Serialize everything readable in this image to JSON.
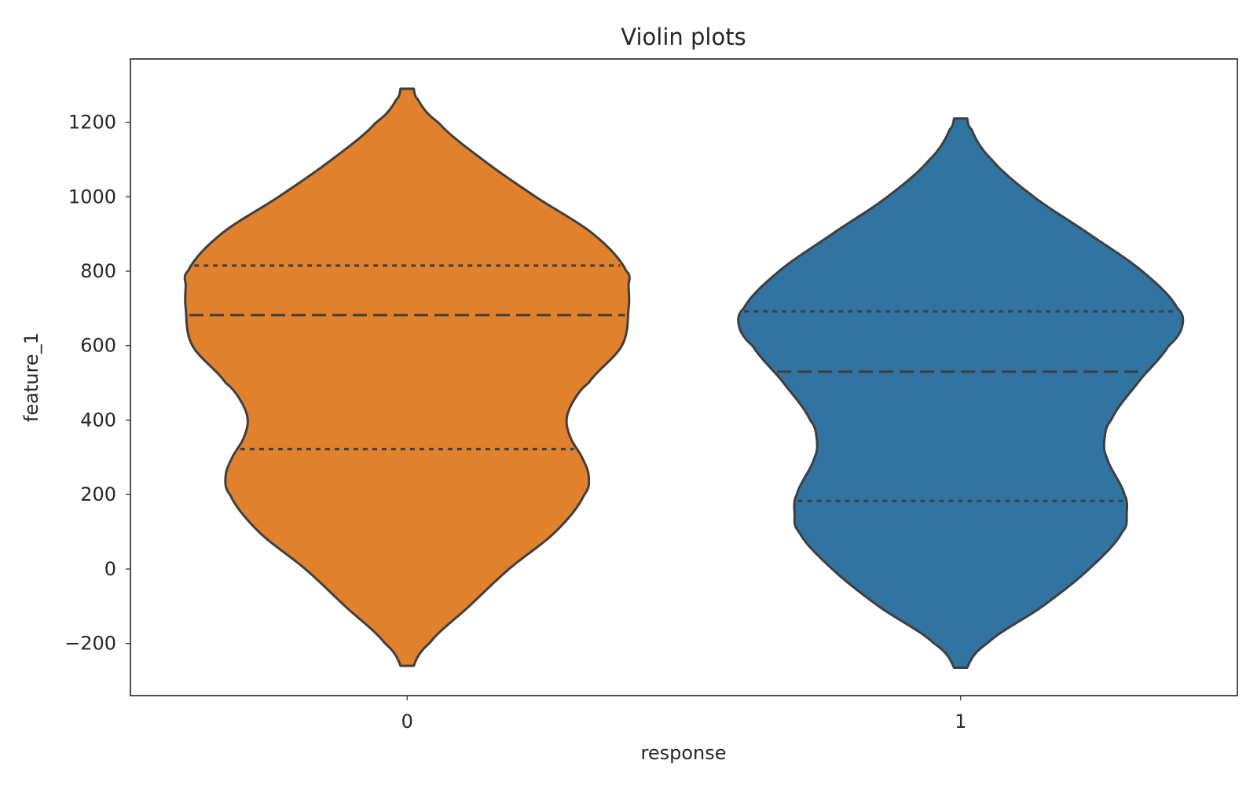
{
  "chart_data": {
    "type": "violin",
    "title": "Violin plots",
    "xlabel": "response",
    "ylabel": "feature_1",
    "categories": [
      "0",
      "1"
    ],
    "ylim": [
      -340,
      1370
    ],
    "yticks": [
      -200,
      0,
      200,
      400,
      600,
      800,
      1000,
      1200
    ],
    "ytick_labels": [
      "−200",
      "0",
      "200",
      "400",
      "600",
      "800",
      "1000",
      "1200"
    ],
    "grid": false,
    "legend": "none",
    "colors": {
      "0": "#e1812c",
      "1": "#3274a1"
    },
    "inner": "quartile",
    "series": [
      {
        "category": "0",
        "min": -260,
        "max": 1290,
        "quartiles": [
          322,
          682,
          815
        ],
        "density_profile": [
          {
            "y": -260,
            "w": 0.03
          },
          {
            "y": -200,
            "w": 0.1
          },
          {
            "y": -100,
            "w": 0.28
          },
          {
            "y": 0,
            "w": 0.46
          },
          {
            "y": 100,
            "w": 0.67
          },
          {
            "y": 200,
            "w": 0.8
          },
          {
            "y": 250,
            "w": 0.82
          },
          {
            "y": 300,
            "w": 0.79
          },
          {
            "y": 350,
            "w": 0.74
          },
          {
            "y": 400,
            "w": 0.72
          },
          {
            "y": 450,
            "w": 0.75
          },
          {
            "y": 500,
            "w": 0.82
          },
          {
            "y": 600,
            "w": 0.97
          },
          {
            "y": 700,
            "w": 1.0
          },
          {
            "y": 760,
            "w": 1.0
          },
          {
            "y": 800,
            "w": 0.99
          },
          {
            "y": 900,
            "w": 0.84
          },
          {
            "y": 1000,
            "w": 0.58
          },
          {
            "y": 1100,
            "w": 0.34
          },
          {
            "y": 1200,
            "w": 0.14
          },
          {
            "y": 1260,
            "w": 0.05
          },
          {
            "y": 1290,
            "w": 0.03
          }
        ]
      },
      {
        "category": "1",
        "min": -265,
        "max": 1210,
        "quartiles": [
          183,
          530,
          692
        ],
        "density_profile": [
          {
            "y": -265,
            "w": 0.03
          },
          {
            "y": -200,
            "w": 0.12
          },
          {
            "y": -100,
            "w": 0.37
          },
          {
            "y": 0,
            "w": 0.58
          },
          {
            "y": 100,
            "w": 0.73
          },
          {
            "y": 150,
            "w": 0.75
          },
          {
            "y": 200,
            "w": 0.74
          },
          {
            "y": 300,
            "w": 0.66
          },
          {
            "y": 350,
            "w": 0.65
          },
          {
            "y": 400,
            "w": 0.68
          },
          {
            "y": 500,
            "w": 0.8
          },
          {
            "y": 600,
            "w": 0.94
          },
          {
            "y": 650,
            "w": 1.0
          },
          {
            "y": 700,
            "w": 0.98
          },
          {
            "y": 800,
            "w": 0.82
          },
          {
            "y": 900,
            "w": 0.58
          },
          {
            "y": 1000,
            "w": 0.33
          },
          {
            "y": 1100,
            "w": 0.14
          },
          {
            "y": 1180,
            "w": 0.05
          },
          {
            "y": 1210,
            "w": 0.03
          }
        ]
      }
    ]
  }
}
